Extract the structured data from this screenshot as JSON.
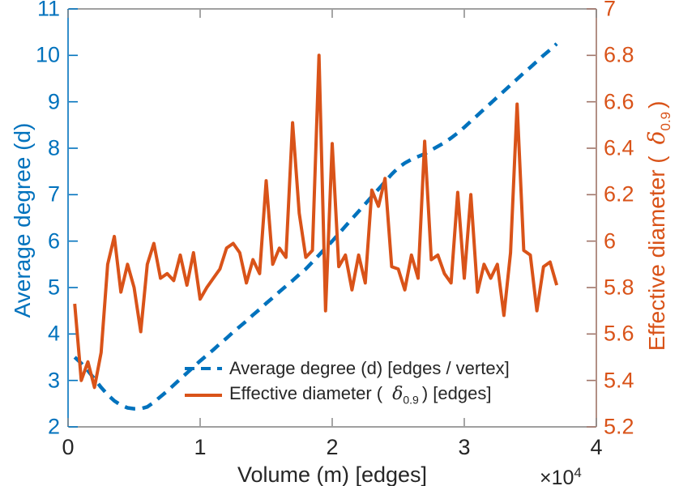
{
  "figure": {
    "colors": {
      "left_axis": "#0072BD",
      "right_axis_line": "#9F7468",
      "right_axis_text": "#D95319",
      "box_gray": "#808080",
      "text_gray": "#262626",
      "series_blue": "#0072BD",
      "series_orange": "#D95319"
    },
    "axes": {
      "x": {
        "label": "Volume (m) [edges]",
        "multiplier_base": "×10",
        "multiplier_exponent": "4"
      },
      "left": {
        "label": "Average degree (d)"
      },
      "right": {
        "label_prefix": "Effective diameter (",
        "delta": "δ",
        "delta_subscript": "0.9",
        "label_suffix": ")"
      }
    },
    "legend": {
      "items": [
        {
          "label": "Average degree (d) [edges / vertex]",
          "line": "dashed",
          "color": "#0072BD"
        },
        {
          "label_prefix": "Effective diameter (",
          "delta": "δ",
          "delta_subscript": "0.9",
          "label_suffix": ") [edges]",
          "line": "solid",
          "color": "#D95319"
        }
      ]
    }
  },
  "chart_data": {
    "type": "line",
    "title": "",
    "xlabel": "Volume (m) [edges]",
    "x_axis_multiplier": "×10^4",
    "xlim": [
      0,
      4
    ],
    "xticks": [
      0,
      1,
      2,
      3,
      4
    ],
    "ylabel_left": "Average degree (d)",
    "ylim_left": [
      2,
      11
    ],
    "yticks_left": [
      2,
      3,
      4,
      5,
      6,
      7,
      8,
      9,
      10,
      11
    ],
    "ylabel_right": "Effective diameter ( δ_0.9 )",
    "ylim_right": [
      5.2,
      7
    ],
    "yticks_right": [
      5.2,
      5.4,
      5.6,
      5.8,
      6,
      6.2,
      6.4,
      6.6,
      6.8,
      7
    ],
    "grid": false,
    "legend_position": "inside-bottom-center",
    "x": [
      0.05,
      0.1,
      0.15,
      0.2,
      0.25,
      0.3,
      0.35,
      0.4,
      0.45,
      0.5,
      0.55,
      0.6,
      0.65,
      0.7,
      0.75,
      0.8,
      0.85,
      0.9,
      0.95,
      1,
      1.05,
      1.1,
      1.15,
      1.2,
      1.25,
      1.3,
      1.35,
      1.4,
      1.45,
      1.5,
      1.55,
      1.6,
      1.65,
      1.7,
      1.75,
      1.8,
      1.85,
      1.9,
      1.95,
      2,
      2.05,
      2.1,
      2.15,
      2.2,
      2.25,
      2.3,
      2.35,
      2.4,
      2.45,
      2.5,
      2.55,
      2.6,
      2.65,
      2.7,
      2.75,
      2.8,
      2.85,
      2.9,
      2.95,
      3,
      3.05,
      3.1,
      3.15,
      3.2,
      3.25,
      3.3,
      3.35,
      3.4,
      3.45,
      3.5,
      3.55,
      3.6,
      3.65,
      3.7
    ],
    "series": [
      {
        "name": "Average degree (d) [edges / vertex]",
        "axis": "left",
        "style": "dashed",
        "color": "#0072BD",
        "values": [
          3.5,
          3.37,
          3.21,
          3.03,
          2.85,
          2.69,
          2.56,
          2.47,
          2.41,
          2.39,
          2.39,
          2.43,
          2.53,
          2.65,
          2.77,
          2.9,
          3.03,
          3.16,
          3.29,
          3.42,
          3.54,
          3.66,
          3.79,
          3.91,
          4.04,
          4.16,
          4.28,
          4.41,
          4.53,
          4.66,
          4.78,
          4.91,
          5.03,
          5.15,
          5.28,
          5.4,
          5.55,
          5.7,
          5.85,
          6,
          6.16,
          6.32,
          6.48,
          6.64,
          6.8,
          6.96,
          7.12,
          7.28,
          7.44,
          7.58,
          7.68,
          7.76,
          7.82,
          7.88,
          7.96,
          8.04,
          8.12,
          8.22,
          8.33,
          8.45,
          8.58,
          8.71,
          8.84,
          8.97,
          9.1,
          9.23,
          9.36,
          9.49,
          9.62,
          9.74,
          9.87,
          10,
          10.12,
          10.25
        ]
      },
      {
        "name": "Effective diameter (δ_0.9) [edges]",
        "axis": "right",
        "style": "solid",
        "color": "#D95319",
        "values": [
          5.73,
          5.4,
          5.48,
          5.37,
          5.52,
          5.9,
          6.02,
          5.78,
          5.9,
          5.8,
          5.61,
          5.9,
          5.99,
          5.84,
          5.86,
          5.83,
          5.94,
          5.81,
          5.95,
          5.75,
          5.8,
          5.84,
          5.88,
          5.97,
          5.99,
          5.95,
          5.82,
          5.92,
          5.86,
          6.26,
          5.9,
          5.97,
          5.93,
          6.51,
          6.12,
          5.93,
          5.96,
          6.8,
          5.7,
          6.42,
          5.89,
          5.94,
          5.79,
          5.94,
          5.82,
          6.22,
          6.15,
          6.27,
          5.89,
          5.88,
          5.79,
          5.94,
          5.84,
          6.43,
          5.92,
          5.94,
          5.86,
          5.82,
          6.21,
          5.84,
          6.2,
          5.78,
          5.9,
          5.84,
          5.9,
          5.68,
          5.95,
          6.59,
          5.96,
          5.94,
          5.7,
          5.89,
          5.91,
          5.81
        ]
      }
    ]
  }
}
